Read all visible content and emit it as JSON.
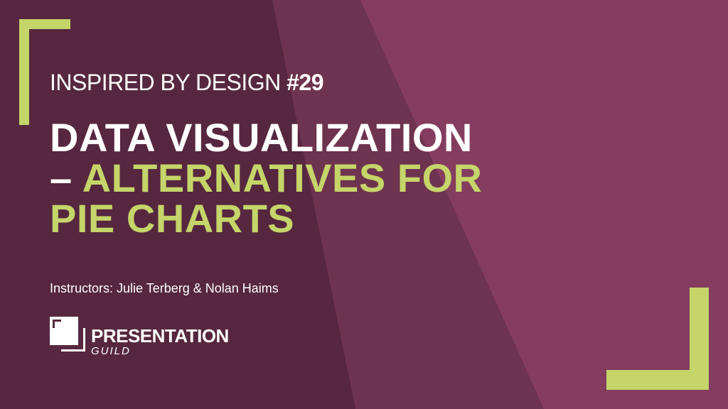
{
  "colors": {
    "background": "#56273f",
    "band_mid": "#6e334e",
    "band_right": "#843d5f",
    "accent": "#c5d56a",
    "text": "#ffffff"
  },
  "header": {
    "kicker": "INSPIRED BY DESIGN",
    "number": "#29"
  },
  "title": {
    "line1": "DATA VISUALIZATION",
    "dash": "–",
    "line2": "ALTERNATIVES FOR",
    "line3": "PIE CHARTS"
  },
  "instructors": "Instructors: Julie Terberg & Nolan Haims",
  "logo": {
    "name": "PRESENTATION",
    "sub": "GUILD"
  }
}
